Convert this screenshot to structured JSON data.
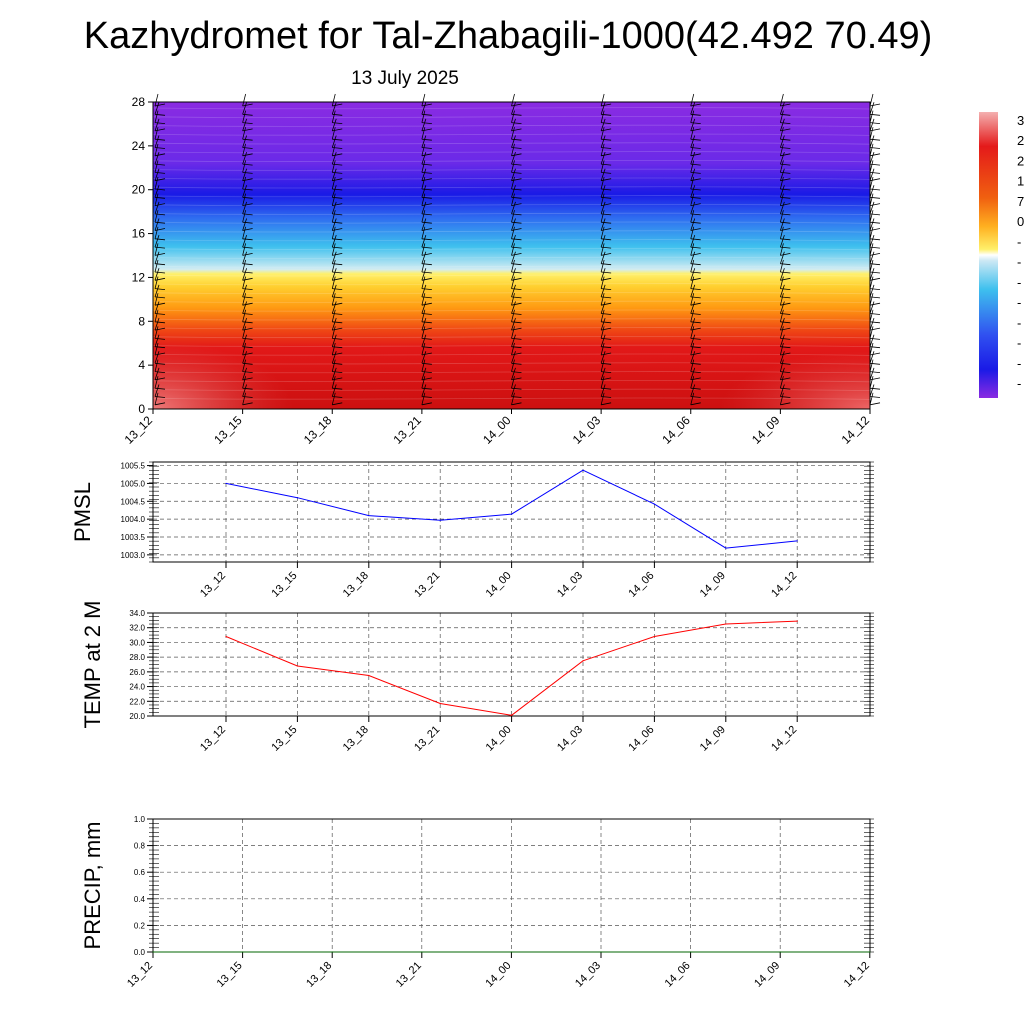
{
  "title": "Kazhydromet for Tal-Zhabagili-1000(42.492 70.49)",
  "date": "13 July 2025",
  "colorbar": {
    "labels": [
      "3",
      "2",
      "2",
      "1",
      "7",
      "0",
      "-",
      "-",
      "-",
      "-",
      "-",
      "-",
      "-",
      "-"
    ]
  },
  "chart_data": [
    {
      "type": "heatmap",
      "title": "",
      "ylabel": "",
      "x_labels": [
        "13_12",
        "13_15",
        "13_18",
        "13_21",
        "14_00",
        "14_03",
        "14_06",
        "14_09",
        "14_12"
      ],
      "yticks": [
        0,
        4,
        8,
        12,
        16,
        20,
        24,
        28
      ],
      "ylim": [
        0,
        28
      ],
      "colorscale": "blue-violet (top) to red (bottom)",
      "colors": {
        "violet": "#8a2be2",
        "blue": "#1a1ae6",
        "cyan": "#3ec0ee",
        "yellow": "#fff06a",
        "orange": "#ff9a12",
        "red": "#e41a1a",
        "darkred": "#cc1010",
        "light_red": "#ee6060"
      }
    },
    {
      "type": "line",
      "ylabel": "PMSL",
      "x_labels": [
        "13_12",
        "13_15",
        "13_18",
        "13_21",
        "14_00",
        "14_03",
        "14_06",
        "14_09",
        "14_12"
      ],
      "values": [
        1005.0,
        1004.6,
        1004.1,
        1003.97,
        1004.14,
        1005.37,
        1004.42,
        1003.19,
        1003.39
      ],
      "yticks": [
        1003.0,
        1003.5,
        1004.0,
        1004.5,
        1005.0,
        1005.5
      ],
      "ytick_labels": [
        "1003.0",
        "1003.5",
        "1004.0",
        "1004.5",
        "1005.0",
        "1005.5"
      ],
      "ylim": [
        1002.8,
        1005.6
      ],
      "grid": true,
      "color": "#0000ff"
    },
    {
      "type": "line",
      "ylabel": "TEMP at 2 M",
      "x_labels": [
        "13_12",
        "13_15",
        "13_18",
        "13_21",
        "14_00",
        "14_03",
        "14_06",
        "14_09",
        "14_12"
      ],
      "values": [
        30.8,
        26.8,
        25.5,
        21.7,
        20.1,
        27.5,
        30.8,
        32.5,
        32.9
      ],
      "yticks": [
        20,
        22,
        24,
        26,
        28,
        30,
        32,
        34
      ],
      "ytick_labels": [
        "20.0",
        "22.0",
        "24.0",
        "26.0",
        "28.0",
        "30.0",
        "32.0",
        "34.0"
      ],
      "ylim": [
        20,
        34
      ],
      "grid": true,
      "color": "#ff0000"
    },
    {
      "type": "line",
      "ylabel": "PRECIP, mm",
      "x_labels": [
        "13_12",
        "13_15",
        "13_18",
        "13_21",
        "14_00",
        "14_03",
        "14_06",
        "14_09",
        "14_12"
      ],
      "values": [
        0,
        0,
        0,
        0,
        0,
        0,
        0,
        0,
        0
      ],
      "yticks": [
        0,
        0.2,
        0.4,
        0.6,
        0.8,
        1.0
      ],
      "ytick_labels": [
        "0.0",
        "0.2",
        "0.4",
        "0.6",
        "0.8",
        "1.0"
      ],
      "ylim": [
        0,
        1
      ],
      "grid": true,
      "color": "#006400"
    }
  ]
}
